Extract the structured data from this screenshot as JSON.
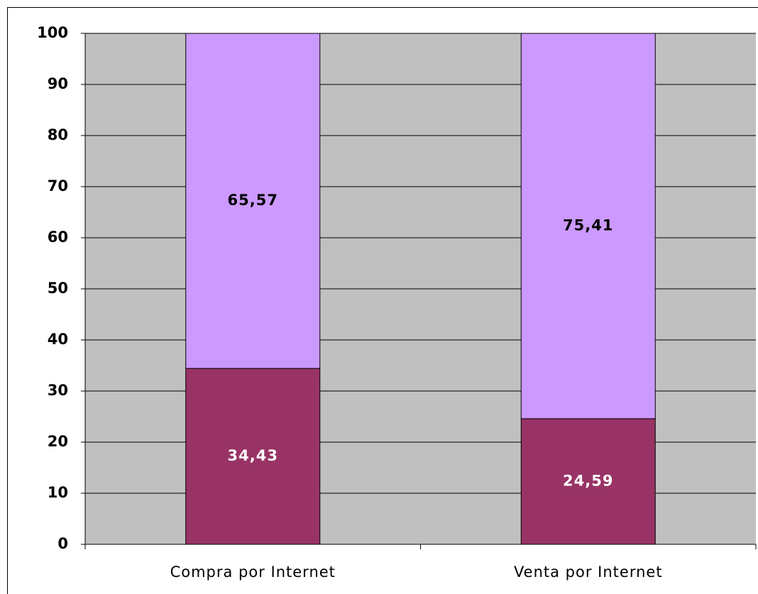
{
  "chart_data": {
    "type": "stacked_bar",
    "categories": [
      "Compra por Internet",
      "Venta por Internet"
    ],
    "series": [
      {
        "color": "#993366",
        "label_color": "#ffffff",
        "values": [
          34.43,
          24.59
        ],
        "value_labels": [
          "34,43",
          "24,59"
        ]
      },
      {
        "color": "#cc99ff",
        "label_color": "#000000",
        "values": [
          65.57,
          75.41
        ],
        "value_labels": [
          "65,57",
          "75,41"
        ]
      }
    ],
    "ylim": [
      0,
      100
    ],
    "yticks": [
      0,
      10,
      20,
      30,
      40,
      50,
      60,
      70,
      80,
      90,
      100
    ],
    "grid": true,
    "plot_background": "#c0c0c0"
  }
}
